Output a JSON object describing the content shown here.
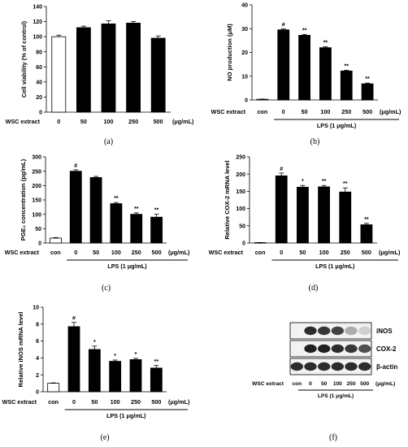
{
  "panels": [
    {
      "id": "a",
      "caption": "(a)",
      "chart_data": {
        "type": "bar",
        "ylabel": "Cell viability (% of control)",
        "ylim": [
          0,
          140
        ],
        "yticks": [
          0,
          20,
          40,
          60,
          80,
          100,
          120,
          140
        ],
        "row_label": "WSC extract",
        "categories": [
          "0",
          "50",
          "100",
          "250",
          "500"
        ],
        "unit": "(μg/mL)",
        "values": [
          100,
          112,
          117,
          118,
          98
        ],
        "errors": [
          2,
          2,
          4,
          2,
          3
        ],
        "marks": [
          "",
          "",
          "",
          "",
          ""
        ],
        "fills": [
          "white",
          "black",
          "black",
          "black",
          "black"
        ],
        "group_label": ""
      }
    },
    {
      "id": "b",
      "caption": "(b)",
      "chart_data": {
        "type": "bar",
        "ylabel": "NO production (μM)",
        "ylim": [
          0,
          40
        ],
        "yticks": [
          0,
          10,
          20,
          30,
          40
        ],
        "row_label": "WSC extract",
        "categories": [
          "con",
          "0",
          "50",
          "100",
          "250",
          "500"
        ],
        "unit": "(μg/mL)",
        "values": [
          0.3,
          29.5,
          27.2,
          22.0,
          12.2,
          6.8
        ],
        "errors": [
          0.1,
          0.4,
          0.4,
          0.4,
          0.3,
          0.3
        ],
        "marks": [
          "",
          "#",
          "**",
          "**",
          "**",
          "**"
        ],
        "fills": [
          "white",
          "black",
          "black",
          "black",
          "black",
          "black"
        ],
        "group_label": "LPS (1 μg/mL)"
      }
    },
    {
      "id": "c",
      "caption": "(c)",
      "chart_data": {
        "type": "bar",
        "ylabel": "PGE₂ concentration (pg/mL)",
        "ylim": [
          0,
          300
        ],
        "yticks": [
          0,
          50,
          100,
          150,
          200,
          250,
          300
        ],
        "row_label": "WSC extract",
        "categories": [
          "con",
          "0",
          "50",
          "100",
          "250",
          "500"
        ],
        "unit": "(μg/mL)",
        "values": [
          17,
          250,
          228,
          137,
          100,
          90
        ],
        "errors": [
          2,
          5,
          4,
          4,
          5,
          10
        ],
        "marks": [
          "",
          "#",
          "",
          "**",
          "**",
          "**"
        ],
        "fills": [
          "white",
          "black",
          "black",
          "black",
          "black",
          "black"
        ],
        "group_label": "LPS (1 μg/mL)"
      }
    },
    {
      "id": "d",
      "caption": "(d)",
      "chart_data": {
        "type": "bar",
        "ylabel": "Relative COX-2 mRNA level",
        "ylim": [
          0,
          250
        ],
        "yticks": [
          0,
          50,
          100,
          150,
          200,
          250
        ],
        "row_label": "WSC extract",
        "categories": [
          "con",
          "0",
          "50",
          "100",
          "250",
          "500"
        ],
        "unit": "(μg/mL)",
        "values": [
          1,
          195,
          162,
          163,
          148,
          53
        ],
        "errors": [
          0.5,
          8,
          5,
          4,
          12,
          4
        ],
        "marks": [
          "",
          "#",
          "*",
          "**",
          "**",
          "**"
        ],
        "fills": [
          "white",
          "black",
          "black",
          "black",
          "black",
          "black"
        ],
        "group_label": "LPS (1 μg/mL)"
      }
    },
    {
      "id": "e",
      "caption": "(e)",
      "chart_data": {
        "type": "bar",
        "ylabel": "Relative iNOS mRNA level",
        "ylim": [
          0,
          10
        ],
        "yticks": [
          0,
          2,
          4,
          6,
          8,
          10
        ],
        "row_label": "WSC extract",
        "categories": [
          "con",
          "0",
          "50",
          "100",
          "250",
          "500"
        ],
        "unit": "(μg/mL)",
        "values": [
          1.0,
          7.7,
          5.0,
          3.6,
          3.8,
          2.8
        ],
        "errors": [
          0.05,
          0.5,
          0.4,
          0.15,
          0.15,
          0.3
        ],
        "marks": [
          "",
          "#",
          "*",
          "*",
          "*",
          "**"
        ],
        "fills": [
          "white",
          "black",
          "black",
          "black",
          "black",
          "black"
        ],
        "group_label": "LPS (1 μg/mL)"
      }
    }
  ],
  "western": {
    "caption": "(f)",
    "bands": [
      {
        "label": "iNOS",
        "intensities": [
          0.0,
          0.9,
          0.85,
          0.8,
          0.35,
          0.2
        ]
      },
      {
        "label": "COX-2",
        "intensities": [
          0.05,
          0.95,
          0.95,
          0.9,
          0.85,
          0.75
        ]
      },
      {
        "label": "β-actin",
        "intensities": [
          0.9,
          0.9,
          0.9,
          0.9,
          0.9,
          0.9
        ]
      }
    ],
    "row_label": "WSC extract",
    "categories": [
      "con",
      "0",
      "50",
      "100",
      "250",
      "500"
    ],
    "unit": "(μg/mL)",
    "group_label": "LPS (1 μg/mL)"
  }
}
